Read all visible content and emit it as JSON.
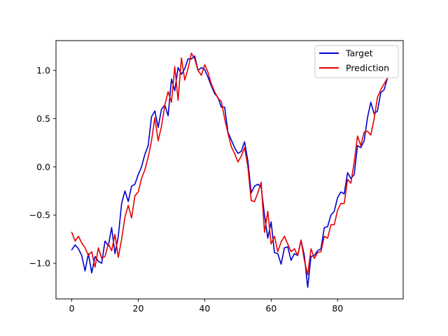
{
  "chart_data": {
    "type": "line",
    "title": "",
    "xlabel": "",
    "ylabel": "",
    "xlim": [
      -4.75,
      99.75
    ],
    "ylim": [
      -1.37,
      1.31
    ],
    "xticks": [
      0,
      20,
      40,
      60,
      80
    ],
    "xtick_labels": [
      "0",
      "20",
      "40",
      "60",
      "80"
    ],
    "yticks": [
      -1.0,
      -0.5,
      0.0,
      0.5,
      1.0
    ],
    "ytick_labels": [
      "−1.0",
      "−0.5",
      "0.0",
      "0.5",
      "1.0"
    ],
    "grid": false,
    "legend": {
      "placement": "top-right"
    },
    "series": [
      {
        "name": "Target",
        "color": "#0000cc",
        "values": [
          -0.86,
          -0.81,
          -0.85,
          -0.92,
          -1.08,
          -0.9,
          -1.1,
          -0.93,
          -0.98,
          -1.0,
          -0.77,
          -0.82,
          -0.63,
          -0.9,
          -0.72,
          -0.38,
          -0.25,
          -0.36,
          -0.2,
          -0.18,
          -0.08,
          0.0,
          0.13,
          0.22,
          0.52,
          0.58,
          0.41,
          0.6,
          0.64,
          0.53,
          0.91,
          0.79,
          1.03,
          0.96,
          1.02,
          1.12,
          1.12,
          1.15,
          1.0,
          1.03,
          1.01,
          0.93,
          0.84,
          0.76,
          0.72,
          0.62,
          0.62,
          0.36,
          0.28,
          0.2,
          0.14,
          0.16,
          0.26,
          0.06,
          -0.27,
          -0.2,
          -0.18,
          -0.21,
          -0.5,
          -0.74,
          -0.57,
          -0.89,
          -0.9,
          -1.01,
          -0.84,
          -0.83,
          -0.97,
          -0.9,
          -0.92,
          -0.76,
          -0.92,
          -1.25,
          -0.93,
          -0.92,
          -0.87,
          -0.85,
          -0.63,
          -0.62,
          -0.5,
          -0.46,
          -0.32,
          -0.26,
          -0.28,
          -0.06,
          -0.12,
          -0.08,
          0.22,
          0.2,
          0.27,
          0.51,
          0.67,
          0.55,
          0.58,
          0.77,
          0.8,
          0.92
        ]
      },
      {
        "name": "Prediction",
        "color": "#e60000",
        "values": [
          -0.68,
          -0.77,
          -0.72,
          -0.79,
          -0.84,
          -0.92,
          -0.88,
          -1.04,
          -0.84,
          -0.95,
          -0.93,
          -0.8,
          -0.87,
          -0.7,
          -0.94,
          -0.75,
          -0.52,
          -0.4,
          -0.53,
          -0.3,
          -0.26,
          -0.12,
          -0.03,
          0.1,
          0.27,
          0.51,
          0.27,
          0.42,
          0.64,
          0.78,
          0.67,
          1.04,
          0.69,
          1.13,
          0.9,
          1.02,
          1.18,
          1.12,
          1.0,
          0.95,
          1.06,
          0.98,
          0.86,
          0.78,
          0.71,
          0.68,
          0.5,
          0.35,
          0.21,
          0.14,
          0.05,
          0.11,
          0.2,
          0.0,
          -0.35,
          -0.36,
          -0.27,
          -0.16,
          -0.68,
          -0.46,
          -0.8,
          -0.72,
          -0.88,
          -0.78,
          -0.72,
          -0.8,
          -0.88,
          -0.85,
          -0.92,
          -0.76,
          -0.97,
          -1.12,
          -0.85,
          -0.95,
          -0.89,
          -0.88,
          -0.72,
          -0.74,
          -0.6,
          -0.6,
          -0.45,
          -0.38,
          -0.38,
          -0.13,
          -0.17,
          0.05,
          0.32,
          0.22,
          0.36,
          0.37,
          0.33,
          0.5,
          0.72,
          0.8,
          0.86,
          0.92
        ]
      }
    ]
  }
}
